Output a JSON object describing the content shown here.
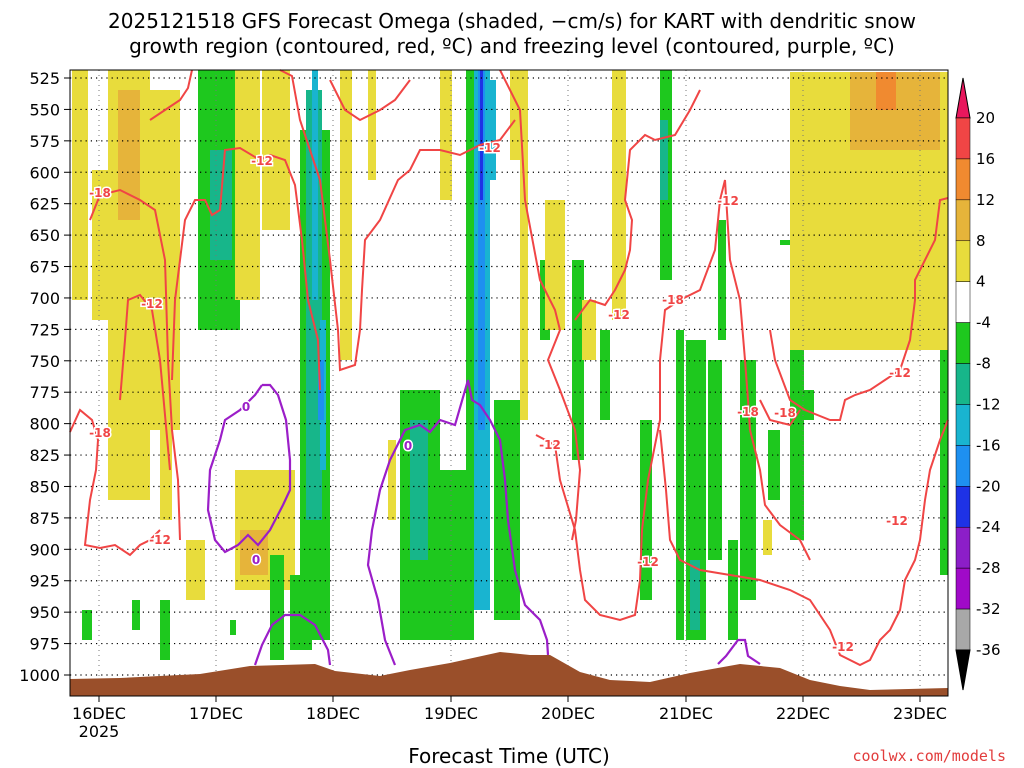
{
  "chart_data": {
    "type": "heatmap",
    "title_line1": "2025121518 GFS Forecast Omega (shaded, −cm/s) for KART with dendritic snow",
    "title_line2": "growth region (contoured, red, ºC) and freezing level (contoured, purple, ºC)",
    "xlabel": "Forecast Time (UTC)",
    "credit": "coolwx.com/models",
    "x_ticks": [
      "16DEC",
      "17DEC",
      "18DEC",
      "19DEC",
      "20DEC",
      "21DEC",
      "22DEC",
      "23DEC"
    ],
    "x_year": "2025",
    "y_ticks": [
      525,
      550,
      575,
      600,
      625,
      650,
      675,
      700,
      725,
      750,
      775,
      800,
      825,
      850,
      875,
      900,
      925,
      950,
      975,
      1000
    ],
    "colorbar": {
      "ticks": [
        20,
        16,
        12,
        8,
        4,
        -4,
        -8,
        -12,
        -16,
        -20,
        -24,
        -28,
        -32,
        -36
      ],
      "colors": [
        "#e8175d",
        "#f04545",
        "#f08a30",
        "#e6b43a",
        "#e8dc3c",
        "#ffffff",
        "#1ec81e",
        "#17b68a",
        "#19b4d0",
        "#1e90f0",
        "#1e32e6",
        "#8c1ec8",
        "#a00ac8",
        "#a8a8a8",
        "#000000"
      ]
    },
    "contour_labels": {
      "red": [
        "-18",
        "-12",
        "-12",
        "-18",
        "-12",
        "-12",
        "-12",
        "-18",
        "-12",
        "-12",
        "-12",
        "-18",
        "-18",
        "-12",
        "-12",
        "-12",
        "-18",
        "-18",
        "-12"
      ],
      "purple": [
        "0",
        "0",
        "0"
      ]
    }
  }
}
